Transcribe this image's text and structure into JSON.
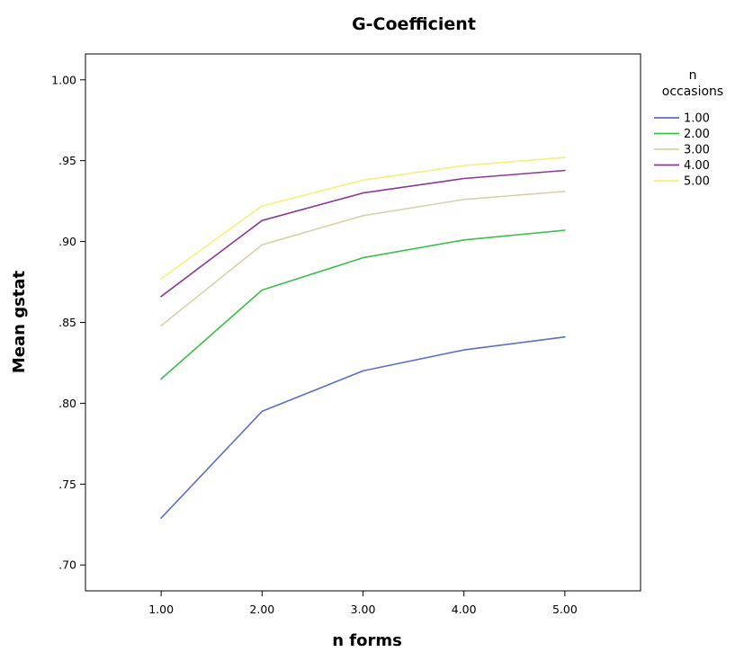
{
  "chart_data": {
    "type": "line",
    "title": "G-Coefficient",
    "xlabel": "n forms",
    "ylabel": "Mean gstat",
    "x": [
      1,
      2,
      3,
      4,
      5
    ],
    "x_tick_labels": [
      "1.00",
      "2.00",
      "3.00",
      "4.00",
      "5.00"
    ],
    "xlim": [
      0.25,
      5.75
    ],
    "ylim": [
      0.684,
      1.016
    ],
    "y_ticks": [
      0.7,
      0.75,
      0.8,
      0.85,
      0.9,
      0.95,
      1.0
    ],
    "y_tick_labels": [
      ".70",
      ".75",
      ".80",
      ".85",
      ".90",
      ".95",
      "1.00"
    ],
    "grid": false,
    "legend": {
      "title_lines": [
        "n",
        "occasions"
      ],
      "placement": "right"
    },
    "series": [
      {
        "name": "1.00",
        "color": "#5b6fc4",
        "values": [
          0.729,
          0.795,
          0.82,
          0.833,
          0.841
        ]
      },
      {
        "name": "2.00",
        "color": "#3cbf4a",
        "values": [
          0.815,
          0.87,
          0.89,
          0.901,
          0.907
        ]
      },
      {
        "name": "3.00",
        "color": "#d8d2a8",
        "values": [
          0.848,
          0.898,
          0.916,
          0.926,
          0.931
        ]
      },
      {
        "name": "4.00",
        "color": "#8b3a94",
        "values": [
          0.866,
          0.913,
          0.93,
          0.939,
          0.944
        ]
      },
      {
        "name": "5.00",
        "color": "#f5f07a",
        "values": [
          0.877,
          0.922,
          0.938,
          0.947,
          0.952
        ]
      }
    ]
  }
}
